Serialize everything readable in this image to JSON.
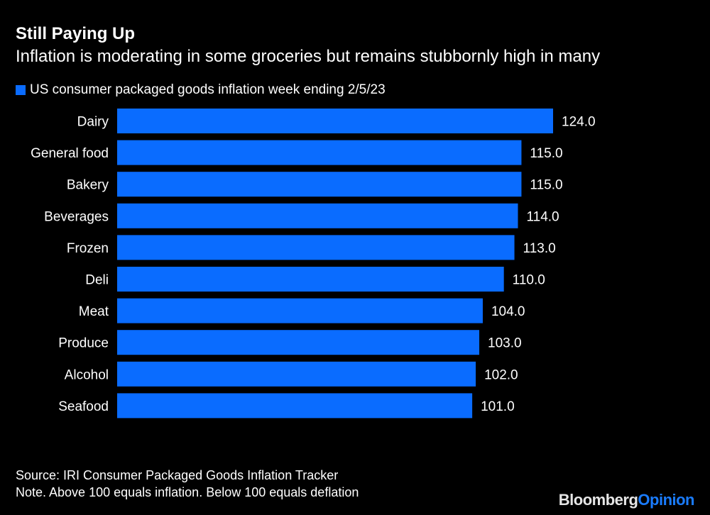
{
  "chart_data": {
    "type": "bar",
    "orientation": "horizontal",
    "title": "Still Paying Up",
    "subtitle": "Inflation is moderating in some groceries but remains stubbornly high in many",
    "legend": {
      "label": "US consumer packaged goods inflation week ending 2/5/23",
      "placement": "top-left"
    },
    "categories": [
      "Dairy",
      "General food",
      "Bakery",
      "Beverages",
      "Frozen",
      "Deli",
      "Meat",
      "Produce",
      "Alcohol",
      "Seafood"
    ],
    "values": [
      124.0,
      115.0,
      115.0,
      114.0,
      113.0,
      110.0,
      104.0,
      103.0,
      102.0,
      101.0
    ],
    "value_labels": [
      "124.0",
      "115.0",
      "115.0",
      "114.0",
      "113.0",
      "110.0",
      "104.0",
      "103.0",
      "102.0",
      "101.0"
    ],
    "xlim": [
      0,
      124
    ],
    "grid": false,
    "colors": {
      "bar": "#0a6cff",
      "background": "#000000",
      "text": "#ffffff"
    }
  },
  "footer": {
    "source": "Source: IRI Consumer Packaged Goods Inflation Tracker",
    "note": "Note. Above 100 equals inflation. Below 100 equals deflation"
  },
  "logo": {
    "part1": "Bloomberg",
    "part2": "Opinion"
  }
}
